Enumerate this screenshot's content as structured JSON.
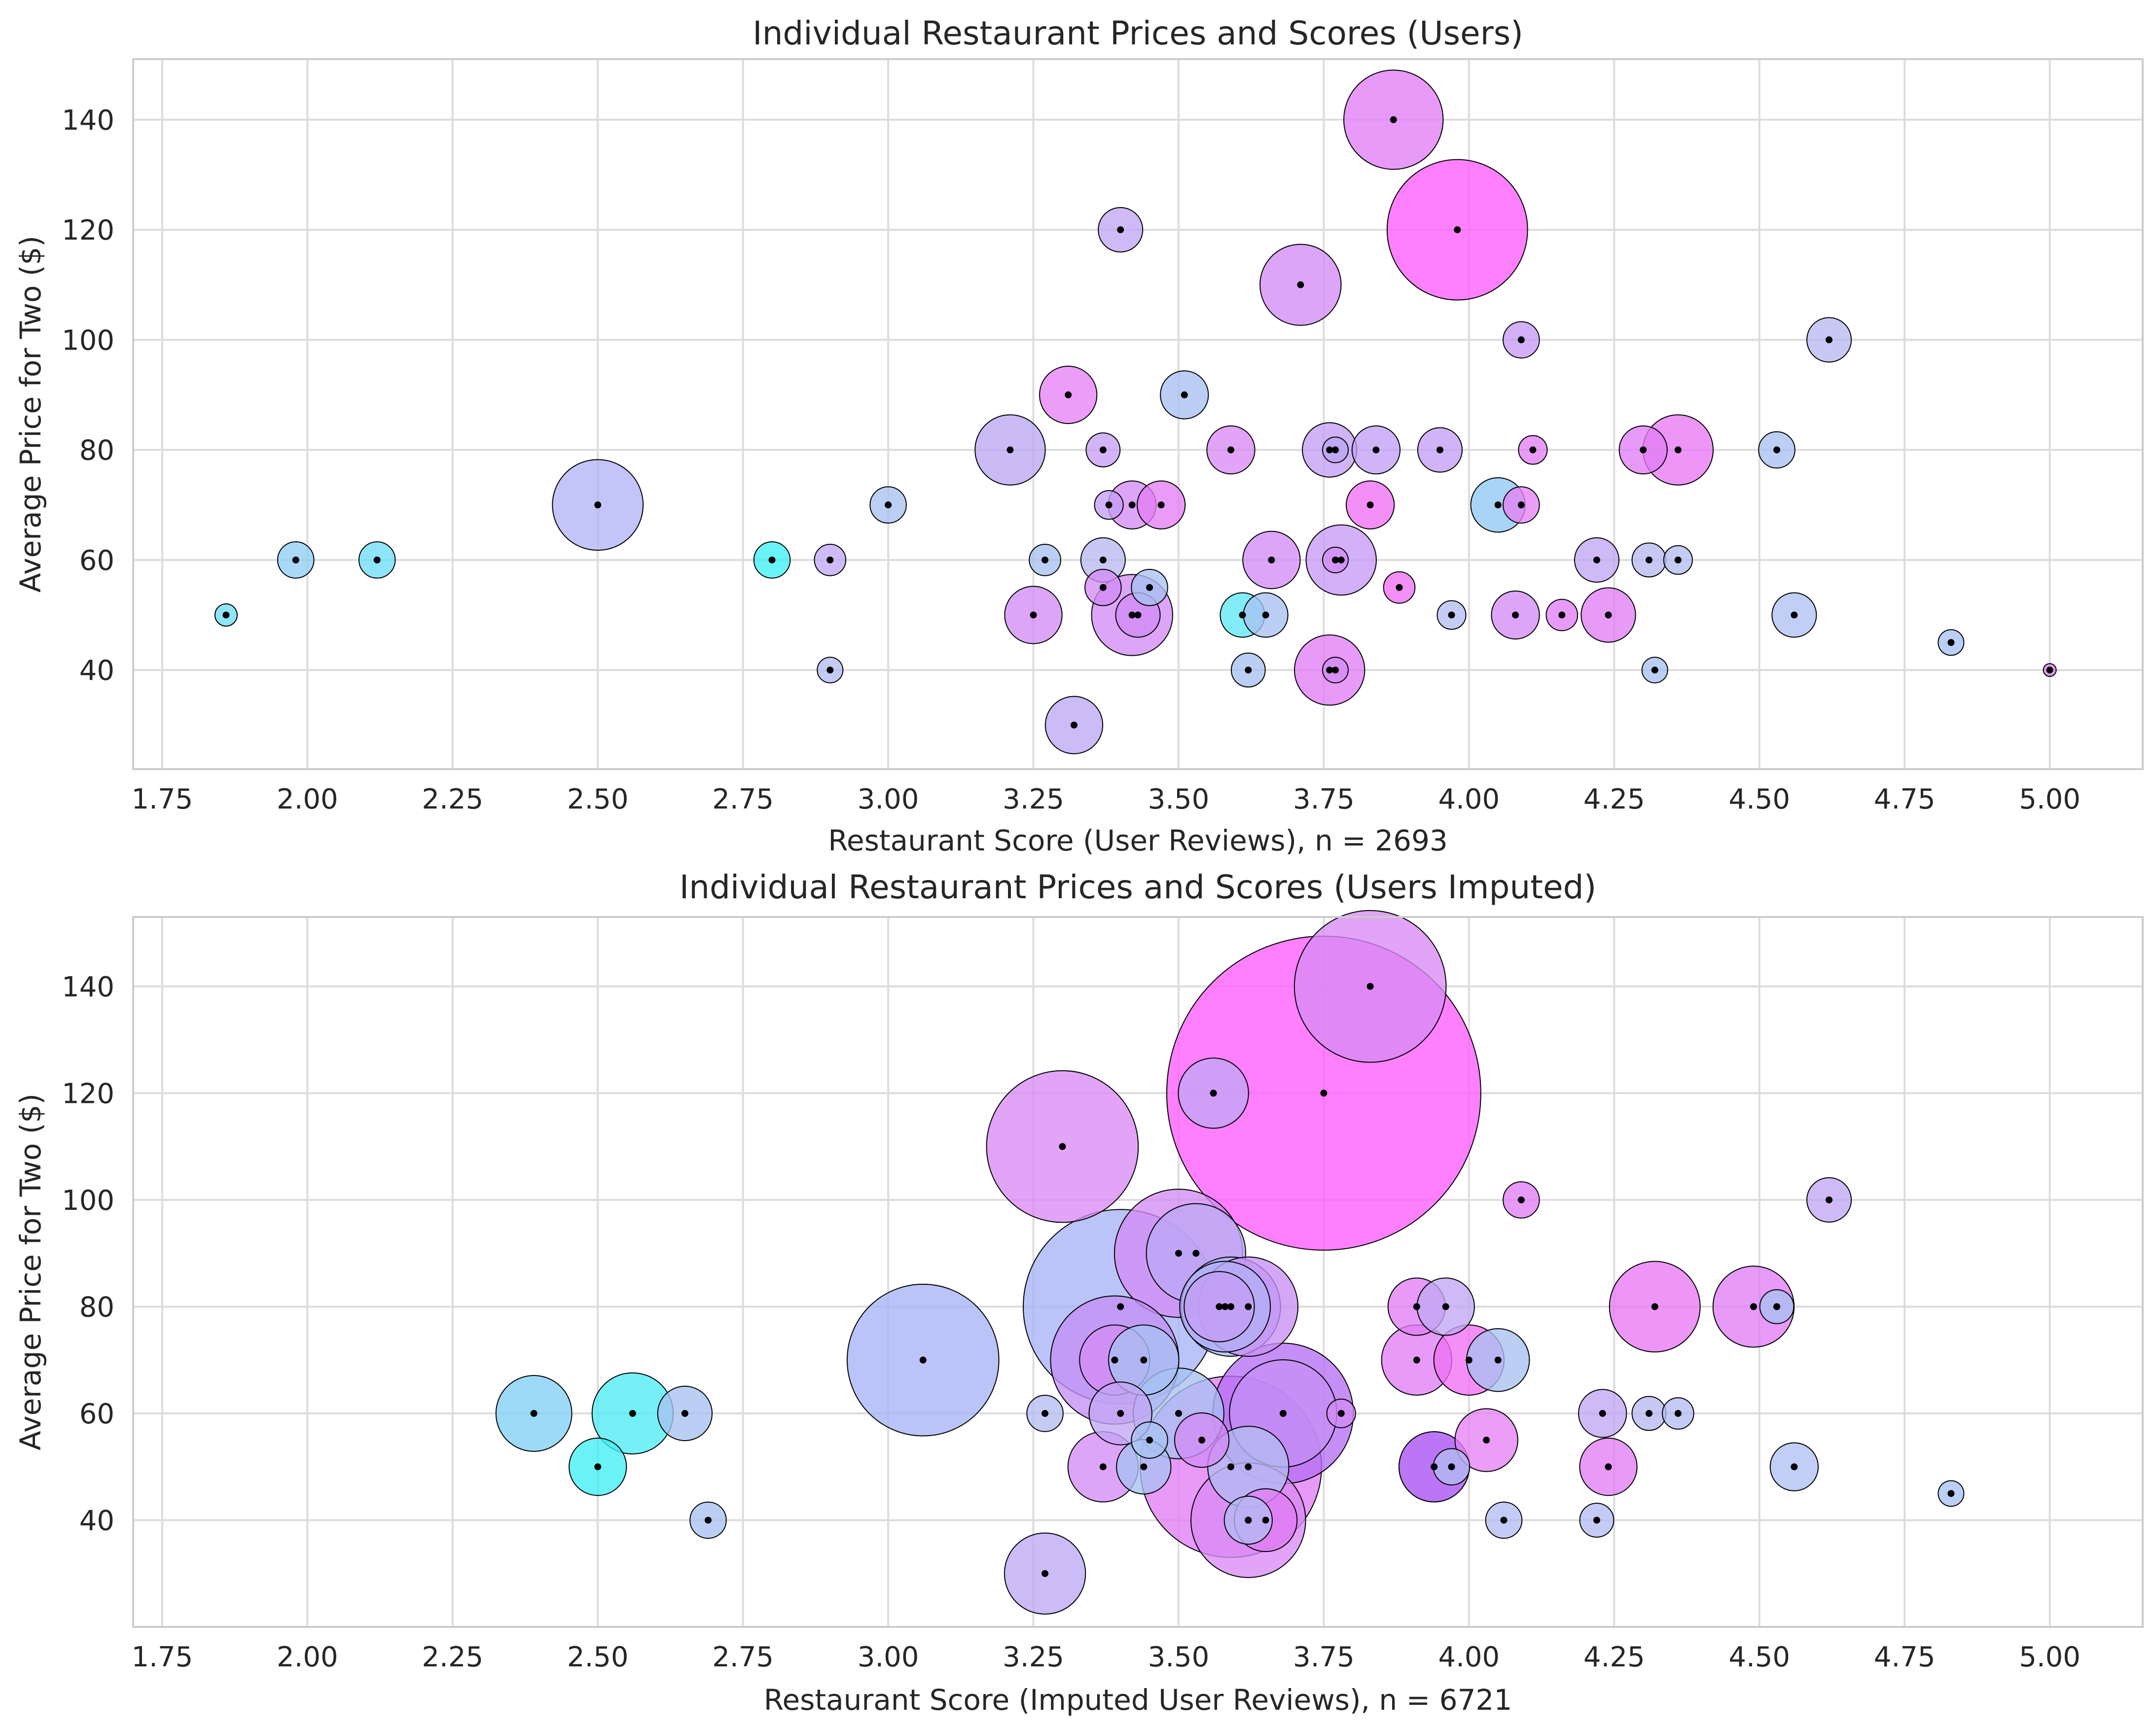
{
  "chart_data": [
    {
      "type": "scatter",
      "title": "Individual Restaurant Prices and Scores (Users)",
      "xlabel": "Restaurant Score (User Reviews), n = 2693",
      "ylabel": "Average Price for Two ($)",
      "xlim": [
        1.7,
        5.16
      ],
      "ylim": [
        22,
        151
      ],
      "xticks": [
        1.75,
        2.0,
        2.25,
        2.5,
        2.75,
        3.0,
        3.25,
        3.5,
        3.75,
        4.0,
        4.25,
        4.5,
        4.75,
        5.0
      ],
      "xtick_labels": [
        "1.75",
        "2.00",
        "2.25",
        "2.50",
        "2.75",
        "3.00",
        "3.25",
        "3.50",
        "3.75",
        "4.00",
        "4.25",
        "4.50",
        "4.75",
        "5.00"
      ],
      "yticks": [
        40,
        60,
        80,
        100,
        120,
        140
      ],
      "ytick_labels": [
        "40",
        "60",
        "80",
        "100",
        "120",
        "140"
      ],
      "grid": true,
      "points": [
        {
          "x": 3.87,
          "y": 140,
          "n": 60,
          "c": "#e07ef5"
        },
        {
          "x": 3.98,
          "y": 120,
          "n": 120,
          "c": "#ff5cff"
        },
        {
          "x": 3.4,
          "y": 120,
          "n": 12,
          "c": "#c2a6f5"
        },
        {
          "x": 3.71,
          "y": 110,
          "n": 40,
          "c": "#d28cf5"
        },
        {
          "x": 4.09,
          "y": 100,
          "n": 8,
          "c": "#c79af5"
        },
        {
          "x": 4.62,
          "y": 100,
          "n": 12,
          "c": "#b8b8f2"
        },
        {
          "x": 3.31,
          "y": 90,
          "n": 20,
          "c": "#e682f5"
        },
        {
          "x": 3.51,
          "y": 90,
          "n": 14,
          "c": "#a8c0f2"
        },
        {
          "x": 3.21,
          "y": 80,
          "n": 30,
          "c": "#bba8f5"
        },
        {
          "x": 3.37,
          "y": 80,
          "n": 7,
          "c": "#c7a0f5"
        },
        {
          "x": 3.59,
          "y": 80,
          "n": 14,
          "c": "#d98af5"
        },
        {
          "x": 3.76,
          "y": 80,
          "n": 18,
          "c": "#c49ef5"
        },
        {
          "x": 3.77,
          "y": 80,
          "n": 4,
          "c": "#b8a8f2"
        },
        {
          "x": 3.84,
          "y": 80,
          "n": 14,
          "c": "#c2a0f5"
        },
        {
          "x": 3.95,
          "y": 80,
          "n": 12,
          "c": "#c49ef5"
        },
        {
          "x": 4.11,
          "y": 80,
          "n": 5,
          "c": "#e47ef5"
        },
        {
          "x": 4.3,
          "y": 80,
          "n": 14,
          "c": "#e07ef5"
        },
        {
          "x": 4.36,
          "y": 80,
          "n": 30,
          "c": "#e878f5"
        },
        {
          "x": 4.53,
          "y": 80,
          "n": 8,
          "c": "#a8c2f2"
        },
        {
          "x": 2.5,
          "y": 70,
          "n": 50,
          "c": "#b2b4f7"
        },
        {
          "x": 3.0,
          "y": 70,
          "n": 8,
          "c": "#a8c2f2"
        },
        {
          "x": 3.38,
          "y": 70,
          "n": 5,
          "c": "#c49ef5"
        },
        {
          "x": 3.42,
          "y": 70,
          "n": 14,
          "c": "#d48cf5"
        },
        {
          "x": 3.47,
          "y": 70,
          "n": 14,
          "c": "#e47ef5"
        },
        {
          "x": 3.83,
          "y": 70,
          "n": 14,
          "c": "#f070f5"
        },
        {
          "x": 4.05,
          "y": 70,
          "n": 18,
          "c": "#90c8f5"
        },
        {
          "x": 4.09,
          "y": 70,
          "n": 8,
          "c": "#e682f5"
        },
        {
          "x": 1.98,
          "y": 60,
          "n": 8,
          "c": "#90cff5"
        },
        {
          "x": 2.12,
          "y": 60,
          "n": 8,
          "c": "#70dcf5"
        },
        {
          "x": 2.8,
          "y": 60,
          "n": 8,
          "c": "#40f0f5"
        },
        {
          "x": 2.9,
          "y": 60,
          "n": 6,
          "c": "#c0a8f5"
        },
        {
          "x": 3.27,
          "y": 60,
          "n": 6,
          "c": "#a8c2f2"
        },
        {
          "x": 3.37,
          "y": 60,
          "n": 12,
          "c": "#b8b8f2"
        },
        {
          "x": 3.66,
          "y": 60,
          "n": 20,
          "c": "#d28cf5"
        },
        {
          "x": 3.78,
          "y": 60,
          "n": 30,
          "c": "#c79af5"
        },
        {
          "x": 3.77,
          "y": 60,
          "n": 4,
          "c": "#d28cf5"
        },
        {
          "x": 4.22,
          "y": 60,
          "n": 12,
          "c": "#c2a6f5"
        },
        {
          "x": 4.31,
          "y": 60,
          "n": 7,
          "c": "#b8b8f2"
        },
        {
          "x": 4.36,
          "y": 60,
          "n": 5,
          "c": "#b4bcf2"
        },
        {
          "x": 3.45,
          "y": 55,
          "n": 8,
          "c": "#a8c2f2"
        },
        {
          "x": 3.37,
          "y": 55,
          "n": 8,
          "c": "#d28cf5"
        },
        {
          "x": 3.88,
          "y": 55,
          "n": 6,
          "c": "#f070f5"
        },
        {
          "x": 1.86,
          "y": 50,
          "n": 3,
          "c": "#70dcf5"
        },
        {
          "x": 3.25,
          "y": 50,
          "n": 20,
          "c": "#d48cf5"
        },
        {
          "x": 3.42,
          "y": 50,
          "n": 40,
          "c": "#d28cf5"
        },
        {
          "x": 3.43,
          "y": 50,
          "n": 12,
          "c": "#d28cf5"
        },
        {
          "x": 3.61,
          "y": 50,
          "n": 12,
          "c": "#60e8f5"
        },
        {
          "x": 3.65,
          "y": 50,
          "n": 12,
          "c": "#a8c2f2"
        },
        {
          "x": 3.97,
          "y": 50,
          "n": 5,
          "c": "#b4bcf2"
        },
        {
          "x": 4.08,
          "y": 50,
          "n": 14,
          "c": "#d28cf5"
        },
        {
          "x": 4.16,
          "y": 50,
          "n": 6,
          "c": "#e07ef5"
        },
        {
          "x": 4.24,
          "y": 50,
          "n": 18,
          "c": "#e07ef5"
        },
        {
          "x": 4.56,
          "y": 50,
          "n": 12,
          "c": "#b0c0f2"
        },
        {
          "x": 4.83,
          "y": 45,
          "n": 4,
          "c": "#a8c2f2"
        },
        {
          "x": 2.9,
          "y": 40,
          "n": 4,
          "c": "#b4bcf2"
        },
        {
          "x": 3.62,
          "y": 40,
          "n": 7,
          "c": "#a8c2f2"
        },
        {
          "x": 3.76,
          "y": 40,
          "n": 30,
          "c": "#e07ef5"
        },
        {
          "x": 3.77,
          "y": 40,
          "n": 4,
          "c": "#d28cf5"
        },
        {
          "x": 4.32,
          "y": 40,
          "n": 4,
          "c": "#a8c2f2"
        },
        {
          "x": 5.0,
          "y": 40,
          "n": 1,
          "c": "#e07ef5"
        },
        {
          "x": 3.32,
          "y": 30,
          "n": 20,
          "c": "#bca8f5"
        }
      ]
    },
    {
      "type": "scatter",
      "title": "Individual Restaurant Prices and Scores (Users Imputed)",
      "xlabel": "Restaurant Score (Imputed User Reviews), n = 6721",
      "ylabel": "Average Price for Two ($)",
      "xlim": [
        1.7,
        5.16
      ],
      "ylim": [
        20,
        153
      ],
      "xticks": [
        1.75,
        2.0,
        2.25,
        2.5,
        2.75,
        3.0,
        3.25,
        3.5,
        3.75,
        4.0,
        4.25,
        4.5,
        4.75,
        5.0
      ],
      "xtick_labels": [
        "1.75",
        "2.00",
        "2.25",
        "2.50",
        "2.75",
        "3.00",
        "3.25",
        "3.50",
        "3.75",
        "4.00",
        "4.25",
        "4.50",
        "4.75",
        "5.00"
      ],
      "yticks": [
        40,
        60,
        80,
        100,
        120,
        140
      ],
      "ytick_labels": [
        "40",
        "60",
        "80",
        "100",
        "120",
        "140"
      ],
      "grid": true,
      "points": [
        {
          "x": 3.83,
          "y": 140,
          "n": 140,
          "c": "#d88af5"
        },
        {
          "x": 3.75,
          "y": 120,
          "n": 600,
          "c": "#ff5cff"
        },
        {
          "x": 3.56,
          "y": 120,
          "n": 30,
          "c": "#c2a6f5"
        },
        {
          "x": 3.3,
          "y": 110,
          "n": 140,
          "c": "#d88af5"
        },
        {
          "x": 4.09,
          "y": 100,
          "n": 8,
          "c": "#e07ef5"
        },
        {
          "x": 4.62,
          "y": 100,
          "n": 12,
          "c": "#c2a6f5"
        },
        {
          "x": 3.5,
          "y": 90,
          "n": 100,
          "c": "#d48cf5"
        },
        {
          "x": 3.53,
          "y": 90,
          "n": 60,
          "c": "#bca8f5"
        },
        {
          "x": 3.4,
          "y": 80,
          "n": 230,
          "c": "#a8b4f7"
        },
        {
          "x": 3.57,
          "y": 80,
          "n": 30,
          "c": "#c49ef5"
        },
        {
          "x": 3.58,
          "y": 80,
          "n": 50,
          "c": "#b4b0f7"
        },
        {
          "x": 3.59,
          "y": 80,
          "n": 60,
          "c": "#a8b4f7"
        },
        {
          "x": 3.62,
          "y": 80,
          "n": 60,
          "c": "#c890f5"
        },
        {
          "x": 3.91,
          "y": 80,
          "n": 20,
          "c": "#e07ef5"
        },
        {
          "x": 3.96,
          "y": 80,
          "n": 20,
          "c": "#c2a6f5"
        },
        {
          "x": 4.32,
          "y": 80,
          "n": 50,
          "c": "#e878f5"
        },
        {
          "x": 4.49,
          "y": 80,
          "n": 40,
          "c": "#e07ef5"
        },
        {
          "x": 4.53,
          "y": 80,
          "n": 7,
          "c": "#a8c2f2"
        },
        {
          "x": 3.06,
          "y": 70,
          "n": 140,
          "c": "#a8b4f7"
        },
        {
          "x": 3.39,
          "y": 70,
          "n": 100,
          "c": "#c490f5"
        },
        {
          "x": 3.39,
          "y": 70,
          "n": 30,
          "c": "#d28cf5"
        },
        {
          "x": 3.44,
          "y": 70,
          "n": 30,
          "c": "#a8c2f2"
        },
        {
          "x": 3.91,
          "y": 70,
          "n": 30,
          "c": "#e07ef5"
        },
        {
          "x": 4.0,
          "y": 70,
          "n": 30,
          "c": "#f070f5"
        },
        {
          "x": 4.05,
          "y": 70,
          "n": 24,
          "c": "#a8c2f2"
        },
        {
          "x": 2.39,
          "y": 60,
          "n": 35,
          "c": "#80d0f5"
        },
        {
          "x": 2.56,
          "y": 60,
          "n": 40,
          "c": "#50ecf5"
        },
        {
          "x": 2.65,
          "y": 60,
          "n": 18,
          "c": "#a8c2f2"
        },
        {
          "x": 3.27,
          "y": 60,
          "n": 8,
          "c": "#b4bcf2"
        },
        {
          "x": 3.4,
          "y": 60,
          "n": 24,
          "c": "#c2a6f5"
        },
        {
          "x": 3.5,
          "y": 60,
          "n": 50,
          "c": "#a8c2f2"
        },
        {
          "x": 3.68,
          "y": 60,
          "n": 120,
          "c": "#b66ef5"
        },
        {
          "x": 3.68,
          "y": 60,
          "n": 70,
          "c": "#c490f5"
        },
        {
          "x": 3.78,
          "y": 60,
          "n": 5,
          "c": "#d28cf5"
        },
        {
          "x": 4.23,
          "y": 60,
          "n": 14,
          "c": "#c2a6f5"
        },
        {
          "x": 4.31,
          "y": 60,
          "n": 7,
          "c": "#b8b8f2"
        },
        {
          "x": 4.36,
          "y": 60,
          "n": 6,
          "c": "#b4bcf2"
        },
        {
          "x": 3.45,
          "y": 55,
          "n": 8,
          "c": "#a8c2f2"
        },
        {
          "x": 3.54,
          "y": 55,
          "n": 18,
          "c": "#d28cf5"
        },
        {
          "x": 4.03,
          "y": 55,
          "n": 24,
          "c": "#e682f5"
        },
        {
          "x": 2.5,
          "y": 50,
          "n": 20,
          "c": "#40f0f5"
        },
        {
          "x": 3.37,
          "y": 50,
          "n": 30,
          "c": "#d48cf5"
        },
        {
          "x": 3.44,
          "y": 50,
          "n": 18,
          "c": "#a8c2f2"
        },
        {
          "x": 3.59,
          "y": 50,
          "n": 200,
          "c": "#e07ef5"
        },
        {
          "x": 3.62,
          "y": 50,
          "n": 40,
          "c": "#b4bcf2"
        },
        {
          "x": 3.94,
          "y": 50,
          "n": 30,
          "c": "#c280f5"
        },
        {
          "x": 3.94,
          "y": 50,
          "n": 30,
          "c": "#b46cf5"
        },
        {
          "x": 3.97,
          "y": 50,
          "n": 8,
          "c": "#b4bcf2"
        },
        {
          "x": 4.24,
          "y": 50,
          "n": 20,
          "c": "#e07ef5"
        },
        {
          "x": 4.56,
          "y": 50,
          "n": 14,
          "c": "#b0c0f2"
        },
        {
          "x": 4.83,
          "y": 45,
          "n": 4,
          "c": "#a8c2f2"
        },
        {
          "x": 2.69,
          "y": 40,
          "n": 8,
          "c": "#a8c2f2"
        },
        {
          "x": 3.62,
          "y": 40,
          "n": 80,
          "c": "#d88af5"
        },
        {
          "x": 3.62,
          "y": 40,
          "n": 14,
          "c": "#b4bcf2"
        },
        {
          "x": 3.65,
          "y": 40,
          "n": 24,
          "c": "#e07ef5"
        },
        {
          "x": 4.06,
          "y": 40,
          "n": 8,
          "c": "#b4bcf2"
        },
        {
          "x": 4.22,
          "y": 40,
          "n": 7,
          "c": "#b4bcf2"
        },
        {
          "x": 3.27,
          "y": 30,
          "n": 40,
          "c": "#bca8f5"
        }
      ]
    }
  ]
}
